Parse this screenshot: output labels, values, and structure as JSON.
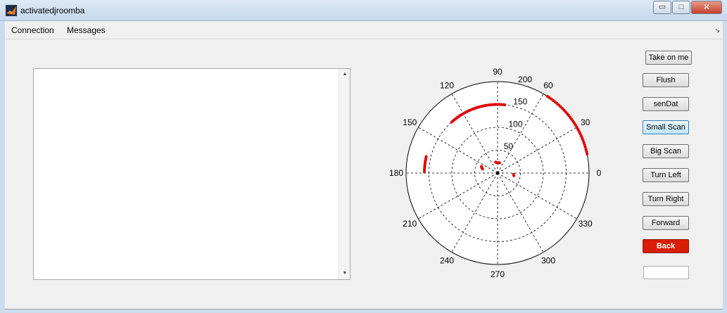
{
  "window": {
    "title": "activatedjroomba",
    "minimize_glyph": "▭",
    "maximize_glyph": "□",
    "close_glyph": "✕"
  },
  "menu": {
    "items": [
      {
        "label": "Connection"
      },
      {
        "label": "Messages"
      }
    ],
    "overflow_glyph": "↘"
  },
  "output_box": {
    "value": "",
    "scroll_up_glyph": "▲",
    "scroll_down_glyph": "▼"
  },
  "buttons": {
    "take_on_me": "Take on me",
    "flush": "Flush",
    "sendat": "senDat",
    "small_scan": "Small Scan",
    "big_scan": "Big Scan",
    "turn_left": "Turn Left",
    "turn_right": "Turn Right",
    "forward": "Forward",
    "back": "Back"
  },
  "small_input": {
    "value": ""
  },
  "colors": {
    "back_button": "#d81e05",
    "scan_points": "#e00000"
  },
  "chart_data": {
    "type": "scatter",
    "coordinate_system": "polar",
    "title": "",
    "angular_tick_labels": [
      "0",
      "30",
      "60",
      "90",
      "120",
      "150",
      "180",
      "210",
      "240",
      "270",
      "300",
      "330"
    ],
    "radial_tick_labels": [
      "50",
      "100",
      "150",
      "200"
    ],
    "rlim": [
      0,
      200
    ],
    "grid": true,
    "series": [
      {
        "marker_color": "#e00000",
        "arcs": [
          {
            "radius": 200,
            "theta_start": 12,
            "theta_end": 58
          },
          {
            "radius": 150,
            "theta_start": 84,
            "theta_end": 133
          },
          {
            "radius": 160,
            "theta_start": 167,
            "theta_end": 180
          }
        ],
        "points": [
          {
            "theta": 165,
            "r": 34
          },
          {
            "theta": 162,
            "r": 36
          },
          {
            "theta": 158,
            "r": 38
          },
          {
            "theta": 100,
            "r": 24
          },
          {
            "theta": 95,
            "r": 23
          },
          {
            "theta": 90,
            "r": 22
          },
          {
            "theta": 85,
            "r": 22
          },
          {
            "theta": 80,
            "r": 23
          },
          {
            "theta": -5,
            "r": 35
          },
          {
            "theta": -9,
            "r": 36
          }
        ]
      }
    ]
  }
}
